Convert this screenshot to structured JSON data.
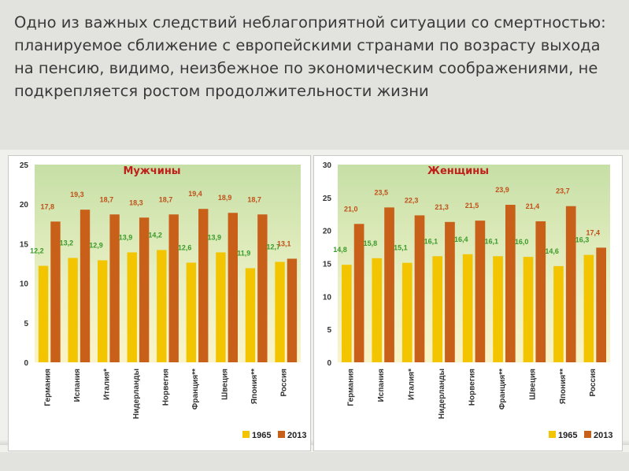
{
  "slide": {
    "title": "Одно из важных следствий неблагоприятной ситуации со смертностью:  планируемое сближение с европейскими странами по возрасту выхода на пенсию, видимо, неизбежное по экономическим соображениями, не подкрепляется ростом продолжительности жизни"
  },
  "colors": {
    "series_1965": "#f2c500",
    "series_2013": "#c8601a",
    "title_men": "#c0201a",
    "title_women": "#c0201a",
    "label_1965": "#3a9a2a",
    "label_2013": "#c0501a"
  },
  "chart_data": [
    {
      "type": "bar",
      "title": "Мужчины",
      "categories": [
        "Германия",
        "Испания",
        "Италия*",
        "Нидерланды",
        "Норвегия",
        "Франция**",
        "Швеция",
        "Япония**",
        "Россия"
      ],
      "series": [
        {
          "name": "1965",
          "values": [
            12.2,
            13.2,
            12.9,
            13.9,
            14.2,
            12.6,
            13.9,
            11.9,
            12.7
          ]
        },
        {
          "name": "2013",
          "values": [
            17.8,
            19.3,
            18.7,
            18.3,
            18.7,
            19.4,
            18.9,
            18.7,
            13.1
          ]
        }
      ],
      "value_labels": [
        {
          "s1": "12,2",
          "s2": "17,8"
        },
        {
          "s1": "13,2",
          "s2": "19,3"
        },
        {
          "s1": "12,9",
          "s2": "18,7"
        },
        {
          "s1": "13,9",
          "s2": "18,3"
        },
        {
          "s1": "14,2",
          "s2": "18,7"
        },
        {
          "s1": "12,6",
          "s2": "19,4"
        },
        {
          "s1": "13,9",
          "s2": "18,9"
        },
        {
          "s1": "11,9",
          "s2": "18,7"
        },
        {
          "s1": "12,7",
          "s2": "13,1"
        }
      ],
      "ylim": [
        0,
        25
      ],
      "yticks": [
        "0",
        "5",
        "10",
        "15",
        "20",
        "25"
      ],
      "legend": {
        "s1": "1965",
        "s2": "2013",
        "position": "bottom-right"
      },
      "background": "green-yellow gradient"
    },
    {
      "type": "bar",
      "title": "Женщины",
      "categories": [
        "Германия",
        "Испания",
        "Италия*",
        "Нидерланды",
        "Норвегия",
        "Франция**",
        "Швеция",
        "Япония**",
        "Россия"
      ],
      "series": [
        {
          "name": "1965",
          "values": [
            14.8,
            15.8,
            15.1,
            16.1,
            16.4,
            16.1,
            16.0,
            14.6,
            16.3
          ]
        },
        {
          "name": "2013",
          "values": [
            21.0,
            23.5,
            22.3,
            21.3,
            21.5,
            23.9,
            21.4,
            23.7,
            17.4
          ]
        }
      ],
      "value_labels": [
        {
          "s1": "14,8",
          "s2": "21,0"
        },
        {
          "s1": "15,8",
          "s2": "23,5"
        },
        {
          "s1": "15,1",
          "s2": "22,3"
        },
        {
          "s1": "16,1",
          "s2": "21,3"
        },
        {
          "s1": "16,4",
          "s2": "21,5"
        },
        {
          "s1": "16,1",
          "s2": "23,9"
        },
        {
          "s1": "16,0",
          "s2": "21,4"
        },
        {
          "s1": "14,6",
          "s2": "23,7"
        },
        {
          "s1": "16,3",
          "s2": "17,4"
        }
      ],
      "ylim": [
        0,
        30
      ],
      "yticks": [
        "0",
        "5",
        "10",
        "15",
        "20",
        "25",
        "30"
      ],
      "legend": {
        "s1": "1965",
        "s2": "2013",
        "position": "bottom-right"
      },
      "background": "green-yellow gradient"
    }
  ]
}
